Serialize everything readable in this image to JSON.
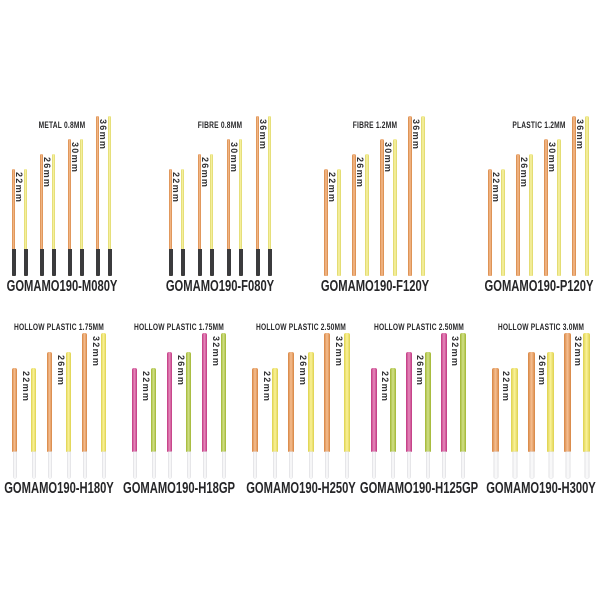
{
  "palette": {
    "orange": "#EF9449",
    "yellow_solid": "#F6ED6E",
    "yellow_hollow": "#F7E955",
    "pink": "#D63C8F",
    "green": "#B3CB38",
    "tip_black": "#3B3B3D",
    "base_white": "#F7F7F8",
    "text": "#29292B"
  },
  "rows": [
    {
      "groups": [
        {
          "header": "METAL 0.8MM",
          "caption": "GOMAMO190-M080Y",
          "sizes": [
            "22mm",
            "26mm",
            "30mm",
            "36mm"
          ],
          "sizes_mm": [
            22,
            26,
            30,
            36
          ],
          "colors": [
            "orange",
            "yellow_solid"
          ],
          "base": "black-tip"
        },
        {
          "header": "FIBRE 0.8MM",
          "caption": "GOMAMO190-F080Y",
          "sizes": [
            "22mm",
            "26mm",
            "30mm",
            "36mm"
          ],
          "sizes_mm": [
            22,
            26,
            30,
            36
          ],
          "colors": [
            "orange",
            "yellow_solid"
          ],
          "base": "black-tip"
        },
        {
          "header": "FIBRE 1.2MM",
          "caption": "GOMAMO190-F120Y",
          "sizes": [
            "22mm",
            "26mm",
            "30mm",
            "36mm"
          ],
          "sizes_mm": [
            22,
            26,
            30,
            36
          ],
          "colors": [
            "orange",
            "yellow_solid"
          ],
          "base": "none"
        },
        {
          "header": "PLASTIC 1.2MM",
          "caption": "GOMAMO190-P120Y",
          "sizes": [
            "22mm",
            "26mm",
            "30mm",
            "36mm"
          ],
          "sizes_mm": [
            22,
            26,
            30,
            36
          ],
          "colors": [
            "orange",
            "yellow_solid"
          ],
          "base": "none"
        }
      ]
    },
    {
      "groups": [
        {
          "header": "HOLLOW PLASTIC 1.75MM",
          "caption": "GOMAMO190-H180Y",
          "sizes": [
            "22mm",
            "26mm",
            "32mm"
          ],
          "sizes_mm": [
            22,
            26,
            32
          ],
          "colors": [
            "orange",
            "yellow_hollow"
          ],
          "base": "white-tube"
        },
        {
          "header": "HOLLOW PLASTIC 1.75MM",
          "caption": "GOMAMO190-H18GP",
          "sizes": [
            "22mm",
            "26mm",
            "32mm"
          ],
          "sizes_mm": [
            22,
            26,
            32
          ],
          "colors": [
            "pink",
            "green"
          ],
          "base": "white-tube"
        },
        {
          "header": "HOLLOW PLASTIC 2.50MM",
          "caption": "GOMAMO190-H250Y",
          "sizes": [
            "22mm",
            "26mm",
            "32mm"
          ],
          "sizes_mm": [
            22,
            26,
            32
          ],
          "colors": [
            "orange",
            "yellow_hollow"
          ],
          "base": "white-tube"
        },
        {
          "header": "HOLLOW PLASTIC 2.50MM",
          "caption": "GOMAMO190-H125GP",
          "sizes": [
            "22mm",
            "26mm",
            "32mm"
          ],
          "sizes_mm": [
            22,
            26,
            32
          ],
          "colors": [
            "pink",
            "green"
          ],
          "base": "white-tube"
        },
        {
          "header": "HOLLOW PLASTIC 3.0MM",
          "caption": "GOMAMO190-H300Y",
          "sizes": [
            "22mm",
            "26mm",
            "32mm"
          ],
          "sizes_mm": [
            22,
            26,
            32
          ],
          "colors": [
            "orange",
            "yellow_hollow"
          ],
          "base": "white-tube"
        }
      ]
    }
  ]
}
